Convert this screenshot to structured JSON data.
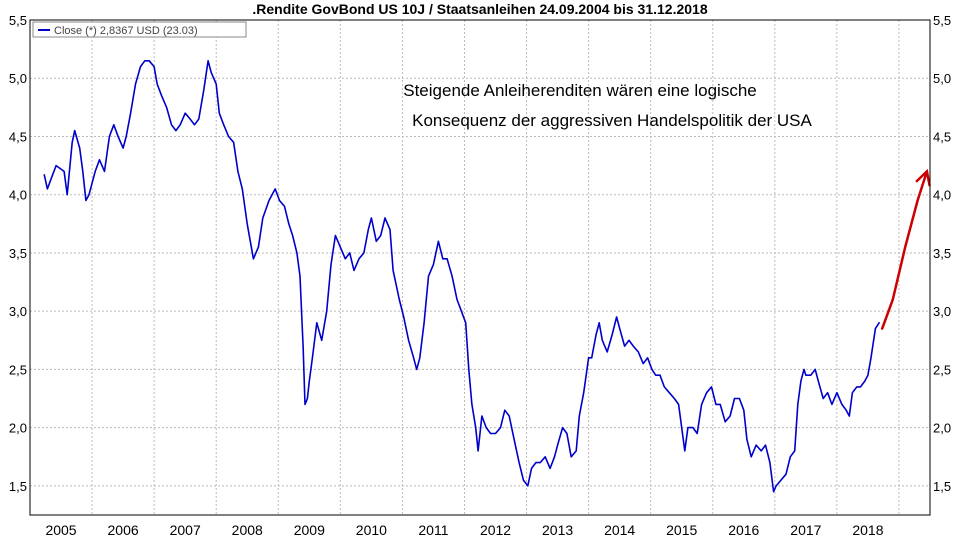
{
  "chart_data": {
    "type": "line",
    "title": ".Rendite GovBond US 10J / Staatsanleihen 24.09.2004 bis 31.12.2018",
    "legend": {
      "label": "Close (*) 2,8367 USD (23.03)",
      "placement": "top-left"
    },
    "ylim": [
      1.25,
      5.5
    ],
    "xlim": [
      2004.5,
      2019.0
    ],
    "y_ticks": [
      "1,5",
      "2,0",
      "2,5",
      "3,0",
      "3,5",
      "4,0",
      "4,5",
      "5,0",
      "5,5"
    ],
    "y_tick_values": [
      1.5,
      2.0,
      2.5,
      3.0,
      3.5,
      4.0,
      4.5,
      5.0,
      5.5
    ],
    "x_ticks": [
      "2005",
      "2006",
      "2007",
      "2008",
      "2009",
      "2010",
      "2011",
      "2012",
      "2013",
      "2014",
      "2015",
      "2016",
      "2017",
      "2018"
    ],
    "grid": true,
    "annotation": {
      "lines": [
        "Steigende Anleiherenditen wären eine logische",
        "Konsequenz der aggressiven Handelspolitik der USA"
      ],
      "color": "#000000"
    },
    "series": [
      {
        "color": "#0000cc",
        "points": [
          [
            2004.73,
            4.17
          ],
          [
            2004.78,
            4.05
          ],
          [
            2004.85,
            4.15
          ],
          [
            2004.92,
            4.25
          ],
          [
            2005.0,
            4.22
          ],
          [
            2005.05,
            4.2
          ],
          [
            2005.1,
            4.0
          ],
          [
            2005.18,
            4.45
          ],
          [
            2005.22,
            4.55
          ],
          [
            2005.3,
            4.4
          ],
          [
            2005.35,
            4.2
          ],
          [
            2005.4,
            3.95
          ],
          [
            2005.45,
            4.0
          ],
          [
            2005.55,
            4.2
          ],
          [
            2005.62,
            4.3
          ],
          [
            2005.7,
            4.2
          ],
          [
            2005.78,
            4.5
          ],
          [
            2005.85,
            4.6
          ],
          [
            2005.92,
            4.5
          ],
          [
            2006.0,
            4.4
          ],
          [
            2006.05,
            4.5
          ],
          [
            2006.12,
            4.7
          ],
          [
            2006.2,
            4.95
          ],
          [
            2006.28,
            5.1
          ],
          [
            2006.35,
            5.15
          ],
          [
            2006.42,
            5.15
          ],
          [
            2006.5,
            5.1
          ],
          [
            2006.55,
            4.95
          ],
          [
            2006.62,
            4.85
          ],
          [
            2006.7,
            4.75
          ],
          [
            2006.78,
            4.6
          ],
          [
            2006.85,
            4.55
          ],
          [
            2006.92,
            4.6
          ],
          [
            2007.0,
            4.7
          ],
          [
            2007.08,
            4.65
          ],
          [
            2007.15,
            4.6
          ],
          [
            2007.22,
            4.65
          ],
          [
            2007.3,
            4.9
          ],
          [
            2007.37,
            5.15
          ],
          [
            2007.42,
            5.05
          ],
          [
            2007.5,
            4.95
          ],
          [
            2007.55,
            4.7
          ],
          [
            2007.62,
            4.6
          ],
          [
            2007.7,
            4.5
          ],
          [
            2007.78,
            4.45
          ],
          [
            2007.85,
            4.2
          ],
          [
            2007.92,
            4.05
          ],
          [
            2008.0,
            3.75
          ],
          [
            2008.05,
            3.6
          ],
          [
            2008.1,
            3.45
          ],
          [
            2008.18,
            3.55
          ],
          [
            2008.25,
            3.8
          ],
          [
            2008.35,
            3.95
          ],
          [
            2008.45,
            4.05
          ],
          [
            2008.52,
            3.95
          ],
          [
            2008.6,
            3.9
          ],
          [
            2008.67,
            3.75
          ],
          [
            2008.73,
            3.65
          ],
          [
            2008.8,
            3.5
          ],
          [
            2008.85,
            3.3
          ],
          [
            2008.9,
            2.7
          ],
          [
            2008.93,
            2.2
          ],
          [
            2008.97,
            2.25
          ],
          [
            2009.0,
            2.4
          ],
          [
            2009.05,
            2.6
          ],
          [
            2009.12,
            2.9
          ],
          [
            2009.2,
            2.75
          ],
          [
            2009.28,
            3.0
          ],
          [
            2009.35,
            3.4
          ],
          [
            2009.42,
            3.65
          ],
          [
            2009.5,
            3.55
          ],
          [
            2009.58,
            3.45
          ],
          [
            2009.65,
            3.5
          ],
          [
            2009.72,
            3.35
          ],
          [
            2009.8,
            3.45
          ],
          [
            2009.88,
            3.5
          ],
          [
            2009.95,
            3.7
          ],
          [
            2010.0,
            3.8
          ],
          [
            2010.08,
            3.6
          ],
          [
            2010.15,
            3.65
          ],
          [
            2010.22,
            3.8
          ],
          [
            2010.3,
            3.7
          ],
          [
            2010.35,
            3.35
          ],
          [
            2010.45,
            3.1
          ],
          [
            2010.52,
            2.95
          ],
          [
            2010.6,
            2.75
          ],
          [
            2010.68,
            2.6
          ],
          [
            2010.73,
            2.5
          ],
          [
            2010.78,
            2.6
          ],
          [
            2010.85,
            2.9
          ],
          [
            2010.92,
            3.3
          ],
          [
            2011.0,
            3.4
          ],
          [
            2011.08,
            3.6
          ],
          [
            2011.15,
            3.45
          ],
          [
            2011.22,
            3.45
          ],
          [
            2011.3,
            3.3
          ],
          [
            2011.38,
            3.1
          ],
          [
            2011.45,
            3.0
          ],
          [
            2011.52,
            2.9
          ],
          [
            2011.57,
            2.5
          ],
          [
            2011.62,
            2.2
          ],
          [
            2011.68,
            2.0
          ],
          [
            2011.72,
            1.8
          ],
          [
            2011.78,
            2.1
          ],
          [
            2011.85,
            2.0
          ],
          [
            2011.92,
            1.95
          ],
          [
            2012.0,
            1.95
          ],
          [
            2012.08,
            2.0
          ],
          [
            2012.15,
            2.15
          ],
          [
            2012.22,
            2.1
          ],
          [
            2012.3,
            1.9
          ],
          [
            2012.38,
            1.7
          ],
          [
            2012.45,
            1.55
          ],
          [
            2012.52,
            1.5
          ],
          [
            2012.58,
            1.65
          ],
          [
            2012.65,
            1.7
          ],
          [
            2012.72,
            1.7
          ],
          [
            2012.8,
            1.75
          ],
          [
            2012.88,
            1.65
          ],
          [
            2012.95,
            1.75
          ],
          [
            2013.0,
            1.85
          ],
          [
            2013.08,
            2.0
          ],
          [
            2013.15,
            1.95
          ],
          [
            2013.22,
            1.75
          ],
          [
            2013.3,
            1.8
          ],
          [
            2013.35,
            2.1
          ],
          [
            2013.42,
            2.3
          ],
          [
            2013.5,
            2.6
          ],
          [
            2013.55,
            2.6
          ],
          [
            2013.62,
            2.8
          ],
          [
            2013.67,
            2.9
          ],
          [
            2013.72,
            2.75
          ],
          [
            2013.8,
            2.65
          ],
          [
            2013.88,
            2.8
          ],
          [
            2013.95,
            2.95
          ],
          [
            2014.0,
            2.85
          ],
          [
            2014.08,
            2.7
          ],
          [
            2014.15,
            2.75
          ],
          [
            2014.22,
            2.7
          ],
          [
            2014.3,
            2.65
          ],
          [
            2014.38,
            2.55
          ],
          [
            2014.45,
            2.6
          ],
          [
            2014.52,
            2.5
          ],
          [
            2014.58,
            2.45
          ],
          [
            2014.65,
            2.45
          ],
          [
            2014.72,
            2.35
          ],
          [
            2014.8,
            2.3
          ],
          [
            2014.88,
            2.25
          ],
          [
            2014.95,
            2.2
          ],
          [
            2015.0,
            2.0
          ],
          [
            2015.05,
            1.8
          ],
          [
            2015.1,
            2.0
          ],
          [
            2015.18,
            2.0
          ],
          [
            2015.25,
            1.95
          ],
          [
            2015.32,
            2.2
          ],
          [
            2015.4,
            2.3
          ],
          [
            2015.48,
            2.35
          ],
          [
            2015.55,
            2.2
          ],
          [
            2015.62,
            2.2
          ],
          [
            2015.7,
            2.05
          ],
          [
            2015.78,
            2.1
          ],
          [
            2015.85,
            2.25
          ],
          [
            2015.93,
            2.25
          ],
          [
            2016.0,
            2.15
          ],
          [
            2016.05,
            1.9
          ],
          [
            2016.12,
            1.75
          ],
          [
            2016.2,
            1.85
          ],
          [
            2016.28,
            1.8
          ],
          [
            2016.35,
            1.85
          ],
          [
            2016.42,
            1.7
          ],
          [
            2016.48,
            1.45
          ],
          [
            2016.52,
            1.5
          ],
          [
            2016.6,
            1.55
          ],
          [
            2016.68,
            1.6
          ],
          [
            2016.75,
            1.75
          ],
          [
            2016.82,
            1.8
          ],
          [
            2016.87,
            2.2
          ],
          [
            2016.92,
            2.4
          ],
          [
            2016.97,
            2.5
          ],
          [
            2017.0,
            2.45
          ],
          [
            2017.08,
            2.45
          ],
          [
            2017.15,
            2.5
          ],
          [
            2017.2,
            2.4
          ],
          [
            2017.28,
            2.25
          ],
          [
            2017.35,
            2.3
          ],
          [
            2017.42,
            2.2
          ],
          [
            2017.5,
            2.3
          ],
          [
            2017.58,
            2.2
          ],
          [
            2017.65,
            2.15
          ],
          [
            2017.7,
            2.1
          ],
          [
            2017.75,
            2.3
          ],
          [
            2017.82,
            2.35
          ],
          [
            2017.88,
            2.35
          ],
          [
            2017.95,
            2.4
          ],
          [
            2018.0,
            2.45
          ],
          [
            2018.05,
            2.6
          ],
          [
            2018.12,
            2.85
          ],
          [
            2018.18,
            2.9
          ]
        ]
      },
      {
        "color": "#cc0000",
        "points": [
          [
            2018.23,
            2.85
          ],
          [
            2018.4,
            3.1
          ],
          [
            2018.6,
            3.55
          ],
          [
            2018.8,
            3.95
          ],
          [
            2018.95,
            4.2
          ]
        ]
      }
    ]
  }
}
